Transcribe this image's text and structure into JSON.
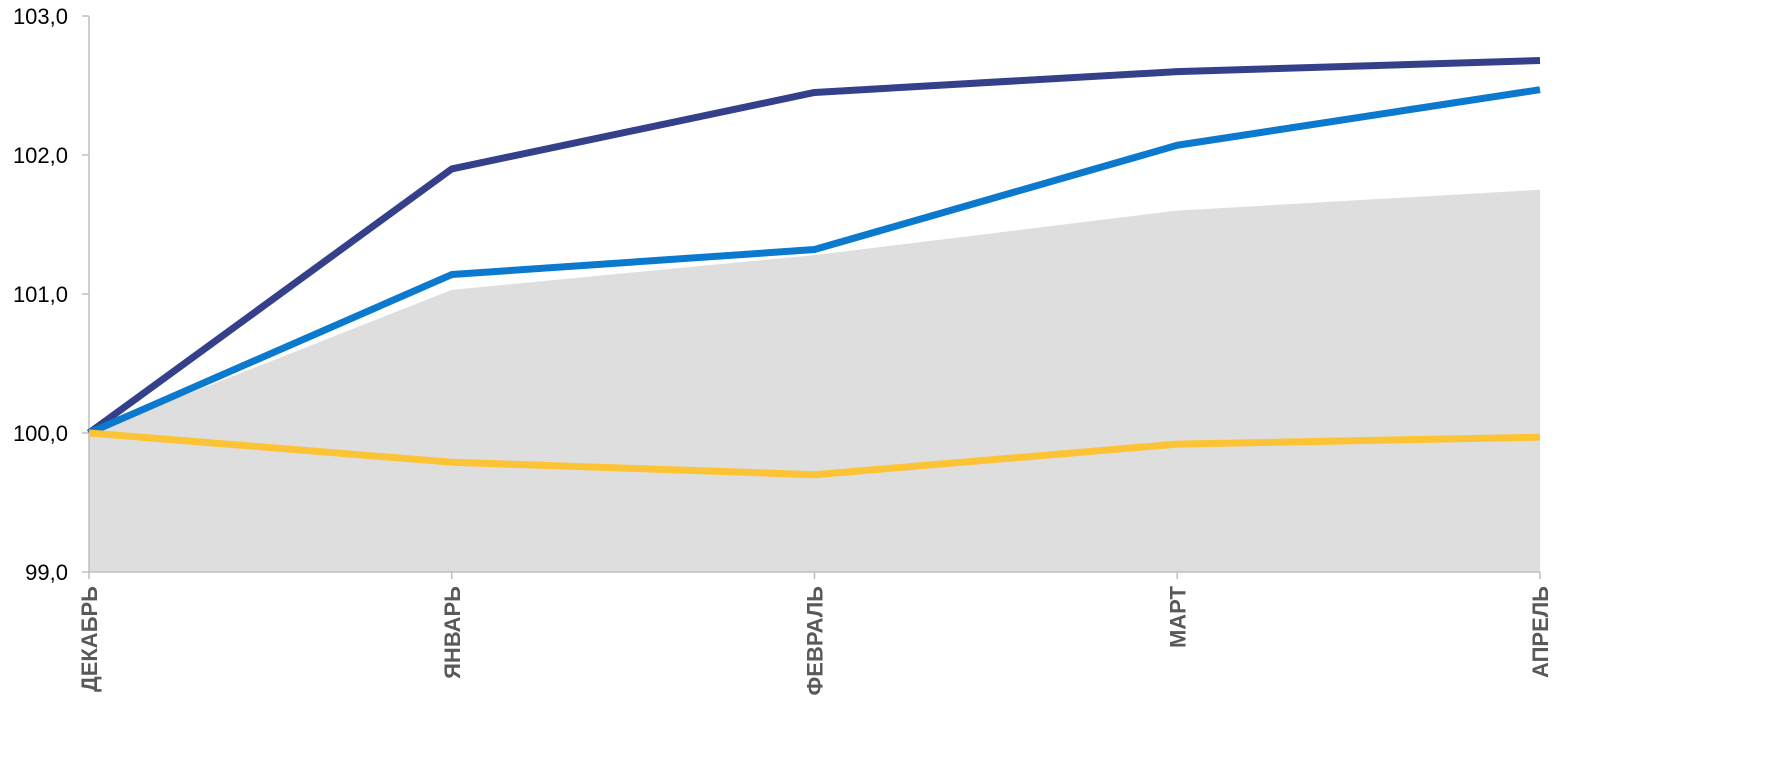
{
  "chart_data": {
    "type": "line",
    "title": "",
    "xlabel": "",
    "ylabel": "",
    "categories": [
      "ДЕКАБРЬ",
      "ЯНВАРЬ",
      "ФЕВРАЛЬ",
      "МАРТ",
      "АПРЕЛЬ"
    ],
    "ylim": [
      99.0,
      103.0
    ],
    "yticks": [
      99.0,
      100.0,
      101.0,
      102.0,
      103.0
    ],
    "ytick_labels": [
      "99,0",
      "100,0",
      "101,0",
      "102,0",
      "103,0"
    ],
    "grid": false,
    "legend": "none",
    "area": {
      "type": "area",
      "color": "#DEDEDE",
      "values": [
        100.0,
        101.03,
        101.28,
        101.6,
        101.75
      ]
    },
    "series": [
      {
        "color": "#34418A",
        "values": [
          100.0,
          101.9,
          102.45,
          102.6,
          102.68
        ]
      },
      {
        "color": "#0B79CE",
        "values": [
          100.0,
          101.14,
          101.32,
          102.07,
          102.47
        ]
      },
      {
        "color": "#FCC434",
        "values": [
          100.0,
          99.79,
          99.7,
          99.92,
          99.97
        ]
      }
    ]
  }
}
